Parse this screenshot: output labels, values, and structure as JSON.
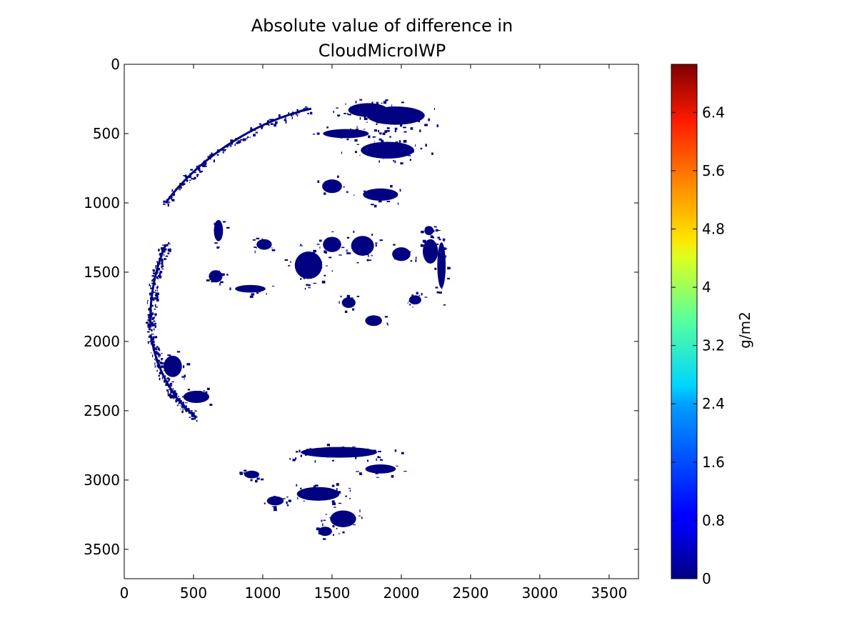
{
  "chart_data": {
    "type": "heatmap",
    "title_lines": [
      "Absolute value of difference in",
      "CloudMicroIWP"
    ],
    "xlabel": "",
    "ylabel": "",
    "xlim": [
      0,
      3712
    ],
    "ylim": [
      3712,
      0
    ],
    "x_ticks": [
      0,
      500,
      1000,
      1500,
      2000,
      2500,
      3000,
      3500
    ],
    "y_ticks": [
      0,
      500,
      1000,
      1500,
      2000,
      2500,
      3000,
      3500
    ],
    "grid": false,
    "colorbar": {
      "label": "g/m2",
      "vmin": 0,
      "vmax": 7.06,
      "ticks": [
        0,
        0.8,
        1.6,
        2.4,
        3.2,
        4,
        4.8,
        5.6,
        6.4
      ],
      "colormap": "jet"
    },
    "data_color": "#000080",
    "regions": [
      {
        "x": 1760,
        "y": 330,
        "rx": 260,
        "ry": 90
      },
      {
        "x": 1960,
        "y": 370,
        "rx": 380,
        "ry": 120
      },
      {
        "x": 1600,
        "y": 500,
        "rx": 300,
        "ry": 60
      },
      {
        "x": 1900,
        "y": 620,
        "rx": 350,
        "ry": 110
      },
      {
        "x": 1500,
        "y": 880,
        "rx": 130,
        "ry": 90
      },
      {
        "x": 1850,
        "y": 940,
        "rx": 230,
        "ry": 80
      },
      {
        "x": 2200,
        "y": 1200,
        "rx": 60,
        "ry": 60
      },
      {
        "x": 1330,
        "y": 1450,
        "rx": 180,
        "ry": 180
      },
      {
        "x": 1500,
        "y": 1300,
        "rx": 120,
        "ry": 100
      },
      {
        "x": 1720,
        "y": 1310,
        "rx": 150,
        "ry": 130
      },
      {
        "x": 2000,
        "y": 1370,
        "rx": 120,
        "ry": 90
      },
      {
        "x": 2210,
        "y": 1350,
        "rx": 100,
        "ry": 160
      },
      {
        "x": 2290,
        "y": 1450,
        "rx": 55,
        "ry": 300
      },
      {
        "x": 1010,
        "y": 1300,
        "rx": 100,
        "ry": 70
      },
      {
        "x": 680,
        "y": 1200,
        "rx": 60,
        "ry": 140
      },
      {
        "x": 660,
        "y": 1530,
        "rx": 90,
        "ry": 80
      },
      {
        "x": 910,
        "y": 1620,
        "rx": 200,
        "ry": 50
      },
      {
        "x": 1620,
        "y": 1720,
        "rx": 90,
        "ry": 70
      },
      {
        "x": 1800,
        "y": 1850,
        "rx": 110,
        "ry": 70
      },
      {
        "x": 2100,
        "y": 1700,
        "rx": 80,
        "ry": 60
      },
      {
        "x": 350,
        "y": 2180,
        "rx": 120,
        "ry": 140
      },
      {
        "x": 520,
        "y": 2400,
        "rx": 170,
        "ry": 80
      },
      {
        "x": 1550,
        "y": 2800,
        "rx": 500,
        "ry": 70
      },
      {
        "x": 1850,
        "y": 2920,
        "rx": 200,
        "ry": 60
      },
      {
        "x": 1400,
        "y": 3100,
        "rx": 280,
        "ry": 90
      },
      {
        "x": 1580,
        "y": 3280,
        "rx": 170,
        "ry": 110
      },
      {
        "x": 1450,
        "y": 3370,
        "rx": 90,
        "ry": 60
      },
      {
        "x": 920,
        "y": 2960,
        "rx": 100,
        "ry": 50
      },
      {
        "x": 1090,
        "y": 3150,
        "rx": 110,
        "ry": 60
      }
    ],
    "arcs": [
      {
        "points": [
          [
            1350,
            320
          ],
          [
            900,
            420
          ],
          [
            500,
            720
          ],
          [
            300,
            1000
          ]
        ],
        "width": 55
      },
      {
        "points": [
          [
            300,
            1300
          ],
          [
            220,
            1480
          ],
          [
            180,
            1700
          ],
          [
            190,
            1900
          ]
        ],
        "width": 70
      },
      {
        "points": [
          [
            190,
            1950
          ],
          [
            230,
            2180
          ],
          [
            330,
            2400
          ],
          [
            520,
            2550
          ]
        ],
        "width": 60
      }
    ]
  }
}
